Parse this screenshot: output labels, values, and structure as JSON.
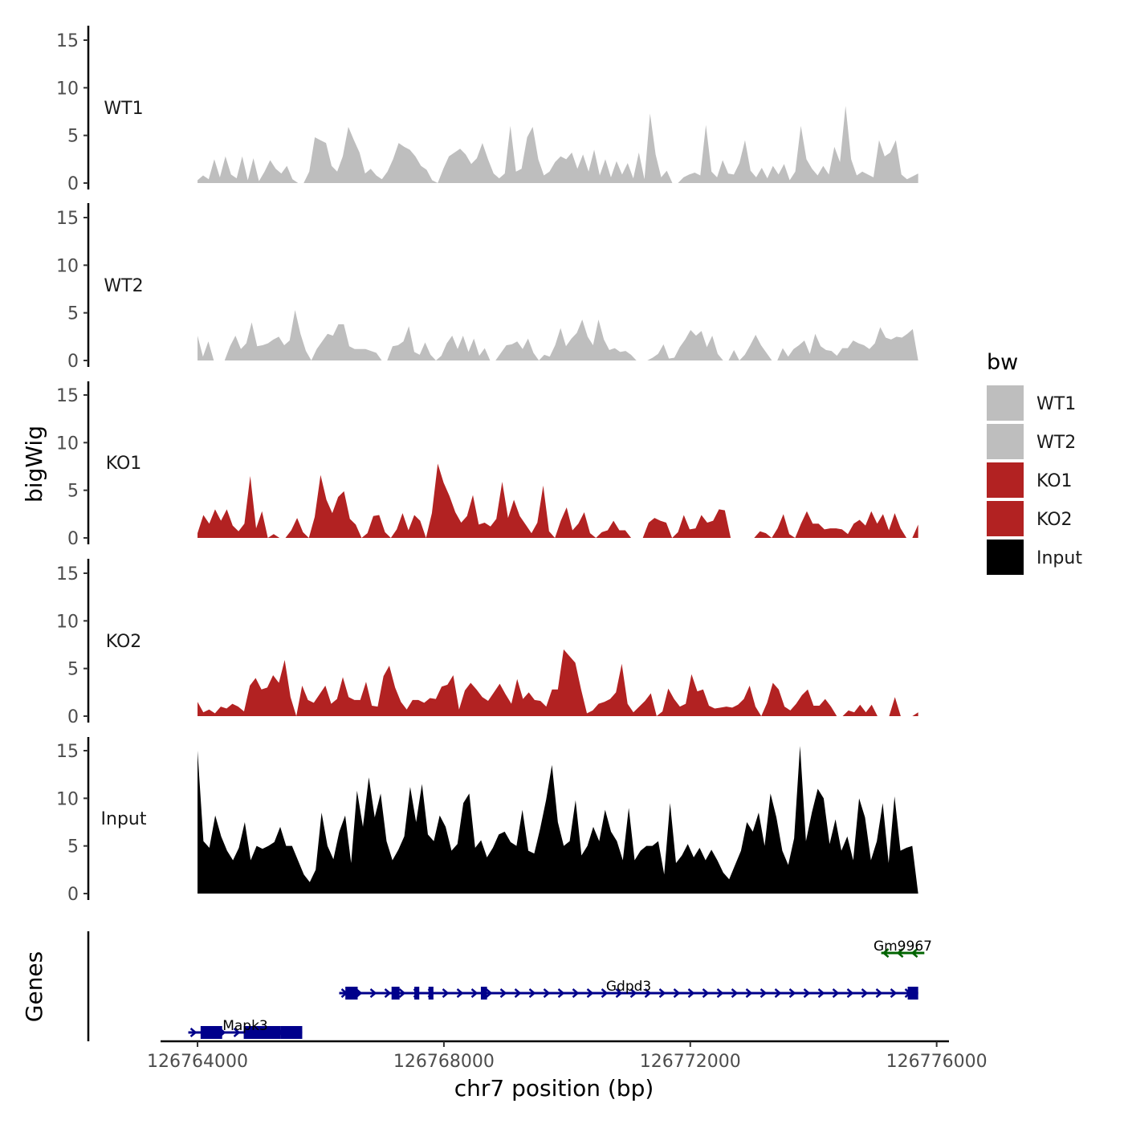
{
  "chart_data": {
    "type": "area",
    "title": "",
    "ylabel": "bigWig",
    "genes_ylabel": "Genes",
    "xlabel": "chr7 position (bp)",
    "xlim": [
      126763400,
      126776200
    ],
    "x_range_data": [
      126764000,
      126775700
    ],
    "xticks": [
      126764000,
      126768000,
      126772000,
      126776000
    ],
    "xtick_labels": [
      "126764000",
      "126768000",
      "126772000",
      "126776000"
    ],
    "ylim": [
      0,
      15.5
    ],
    "yticks": [
      0,
      5,
      10,
      15
    ],
    "ytick_labels": [
      "0",
      "5",
      "10",
      "15"
    ],
    "legend": {
      "title": "bw",
      "position": "right",
      "entries": [
        {
          "label": "WT1",
          "color": "#bebebe"
        },
        {
          "label": "WT2",
          "color": "#bebebe"
        },
        {
          "label": "KO1",
          "color": "#b22222"
        },
        {
          "label": "KO2",
          "color": "#b22222"
        },
        {
          "label": "Input",
          "color": "#000000"
        }
      ]
    },
    "series": [
      {
        "name": "WT1",
        "color": "#bebebe",
        "values": [
          0.3,
          0.8,
          0.4,
          2.5,
          0.6,
          2.8,
          0.9,
          0.5,
          2.8,
          0.3,
          2.6,
          0.2,
          1.2,
          2.4,
          1.5,
          1.0,
          1.8,
          0.4,
          0.0,
          0.0,
          1.2,
          4.8,
          4.5,
          4.2,
          1.8,
          1.2,
          2.8,
          5.9,
          4.5,
          3.2,
          1.0,
          1.5,
          0.8,
          0.4,
          1.2,
          2.5,
          4.2,
          3.8,
          3.5,
          2.8,
          1.8,
          1.4,
          0.3,
          0.0,
          1.5,
          2.8,
          3.2,
          3.6,
          3.0,
          2.0,
          2.6,
          4.2,
          2.5,
          1.0,
          0.5,
          1.0,
          6.0,
          1.2,
          1.5,
          4.8,
          5.9,
          2.5,
          0.8,
          1.2,
          2.2,
          2.8,
          2.5,
          3.2,
          1.5,
          3.0,
          1.2,
          3.5,
          0.8,
          2.5,
          0.6,
          2.3,
          0.9,
          2.1,
          0.5,
          3.2,
          0.4,
          7.3,
          3.0,
          0.6,
          1.3,
          0.0,
          0.0,
          0.6,
          0.9,
          1.1,
          0.8,
          6.1,
          1.2,
          0.6,
          2.4,
          1.0,
          0.9,
          2.1,
          4.5,
          1.3,
          0.6,
          1.6,
          0.5,
          1.8,
          0.9,
          2.0,
          0.3,
          1.2,
          6.0,
          2.5,
          1.5,
          0.8,
          1.8,
          0.9,
          3.8,
          2.2,
          8.1,
          2.5,
          0.8,
          1.2,
          0.9,
          0.6,
          4.5,
          2.8,
          3.2,
          4.5,
          0.9,
          0.4,
          0.7,
          1.0
        ]
      },
      {
        "name": "WT2",
        "color": "#bebebe",
        "values": [
          2.6,
          0.4,
          2.0,
          0.0,
          0.0,
          0.0,
          1.5,
          2.6,
          1.2,
          1.8,
          4.0,
          1.5,
          1.6,
          1.8,
          2.2,
          2.5,
          1.6,
          2.1,
          5.3,
          2.8,
          1.0,
          0.0,
          1.2,
          2.0,
          2.8,
          2.6,
          3.8,
          3.8,
          1.5,
          1.2,
          1.2,
          1.2,
          1.0,
          0.8,
          0.0,
          0.0,
          1.5,
          1.6,
          2.0,
          3.6,
          0.9,
          0.6,
          1.9,
          0.6,
          0.0,
          0.5,
          1.8,
          2.6,
          1.2,
          2.6,
          0.9,
          2.3,
          0.5,
          1.3,
          0.0,
          0.0,
          0.8,
          1.6,
          1.7,
          2.0,
          1.2,
          2.3,
          0.8,
          0.0,
          0.6,
          0.4,
          1.6,
          3.4,
          1.5,
          2.3,
          2.9,
          4.3,
          2.5,
          1.6,
          4.3,
          2.2,
          1.1,
          1.3,
          0.9,
          1.0,
          0.6,
          0.0,
          0.0,
          0.0,
          0.3,
          0.7,
          1.7,
          0.2,
          0.3,
          1.4,
          2.2,
          3.2,
          2.6,
          3.1,
          1.4,
          2.6,
          0.7,
          0.0,
          0.0,
          1.1,
          0.0,
          0.6,
          1.6,
          2.7,
          1.6,
          0.8,
          0.0,
          0.0,
          1.3,
          0.4,
          1.2,
          1.6,
          2.1,
          0.7,
          2.8,
          1.5,
          1.1,
          1.0,
          0.5,
          1.3,
          1.3,
          2.1,
          1.8,
          1.6,
          1.2,
          1.8,
          3.5,
          2.4,
          2.2,
          2.5,
          2.4,
          2.8,
          3.3,
          0.0
        ]
      },
      {
        "name": "KO1",
        "color": "#b22222",
        "values": [
          0.5,
          2.4,
          1.5,
          3.0,
          1.8,
          3.0,
          1.3,
          0.7,
          1.5,
          6.5,
          1.0,
          2.8,
          0.0,
          0.4,
          0.0,
          0.0,
          0.8,
          2.1,
          0.6,
          0.0,
          2.2,
          6.6,
          4.0,
          2.6,
          4.3,
          4.9,
          2.0,
          1.4,
          0.0,
          0.5,
          2.3,
          2.4,
          0.6,
          0.0,
          0.9,
          2.6,
          0.8,
          2.4,
          1.8,
          0.0,
          2.6,
          7.8,
          5.8,
          4.4,
          2.7,
          1.6,
          2.3,
          4.5,
          1.4,
          1.6,
          1.2,
          2.0,
          5.9,
          2.1,
          4.0,
          2.3,
          1.4,
          0.5,
          1.6,
          5.5,
          0.7,
          0.0,
          1.8,
          3.2,
          0.8,
          1.5,
          2.7,
          0.5,
          0.0,
          0.6,
          0.8,
          1.8,
          0.8,
          0.8,
          0.0,
          0.0,
          0.0,
          1.6,
          2.1,
          1.8,
          1.6,
          0.0,
          0.6,
          2.4,
          0.9,
          1.0,
          2.4,
          1.6,
          1.8,
          3.0,
          2.9,
          0.0,
          0.0,
          0.0,
          0.0,
          0.0,
          0.7,
          0.5,
          0.0,
          1.0,
          2.5,
          0.4,
          0.0,
          1.5,
          2.8,
          1.5,
          1.5,
          0.9,
          1.0,
          1.0,
          0.9,
          0.4,
          1.5,
          1.9,
          1.3,
          2.8,
          1.5,
          2.5,
          0.8,
          2.6,
          1.0,
          0.0,
          0.0,
          1.4
        ]
      },
      {
        "name": "KO2",
        "color": "#b22222",
        "values": [
          1.5,
          0.4,
          0.7,
          0.3,
          1.0,
          0.8,
          1.3,
          1.0,
          0.5,
          3.2,
          4.0,
          2.8,
          3.0,
          4.3,
          3.5,
          5.9,
          2.0,
          0.0,
          3.2,
          1.7,
          1.4,
          2.3,
          3.2,
          1.3,
          1.8,
          4.1,
          2.0,
          1.7,
          1.7,
          3.6,
          1.1,
          1.0,
          4.2,
          5.3,
          3.0,
          1.5,
          0.7,
          1.7,
          1.7,
          1.4,
          1.9,
          1.8,
          3.1,
          3.3,
          4.3,
          0.7,
          2.7,
          3.5,
          2.8,
          2.0,
          1.6,
          2.5,
          3.4,
          2.3,
          1.3,
          3.9,
          1.8,
          2.5,
          1.7,
          1.6,
          1.0,
          2.8,
          2.8,
          7.0,
          6.3,
          5.6,
          2.8,
          0.3,
          0.6,
          1.3,
          1.5,
          1.8,
          2.5,
          5.5,
          1.3,
          0.4,
          1.0,
          1.6,
          2.4,
          0.0,
          0.5,
          2.9,
          1.8,
          1.0,
          1.3,
          4.4,
          2.6,
          2.8,
          1.1,
          0.8,
          0.9,
          1.0,
          0.9,
          1.2,
          1.8,
          3.2,
          1.0,
          0.0,
          1.4,
          3.5,
          2.8,
          1.0,
          0.6,
          1.3,
          2.2,
          2.8,
          1.1,
          1.1,
          1.8,
          1.0,
          0.0,
          0.0,
          0.6,
          0.4,
          1.2,
          0.4,
          1.2,
          0.0,
          0.0,
          0.0,
          2.0,
          0.0,
          0.0,
          0.0,
          0.4
        ]
      },
      {
        "name": "Input",
        "color": "#000000",
        "values": [
          15.0,
          5.5,
          4.8,
          8.2,
          6.0,
          4.5,
          3.5,
          4.8,
          7.5,
          3.5,
          5.0,
          4.7,
          5.0,
          5.4,
          7.0,
          5.0,
          5.0,
          3.5,
          2.0,
          1.2,
          2.5,
          8.5,
          5.0,
          3.6,
          6.5,
          8.2,
          3.2,
          10.8,
          7.0,
          12.2,
          8.0,
          10.5,
          5.5,
          3.5,
          4.6,
          6.0,
          11.2,
          7.5,
          11.5,
          6.2,
          5.5,
          8.2,
          7.0,
          4.5,
          5.2,
          9.5,
          10.5,
          4.8,
          5.6,
          3.8,
          4.8,
          6.2,
          6.5,
          5.4,
          5.0,
          8.8,
          4.5,
          4.2,
          6.8,
          9.8,
          13.5,
          7.5,
          5.0,
          5.5,
          9.8,
          4.0,
          5.0,
          7.0,
          5.5,
          8.8,
          6.5,
          5.5,
          3.5,
          9.0,
          3.5,
          4.5,
          5.0,
          5.0,
          5.5,
          2.0,
          9.5,
          3.2,
          4.0,
          5.2,
          3.8,
          4.8,
          3.5,
          4.6,
          3.5,
          2.2,
          1.5,
          3.0,
          4.5,
          7.5,
          6.5,
          8.5,
          5.0,
          10.5,
          8.0,
          4.5,
          3.0,
          5.8,
          15.5,
          5.5,
          8.5,
          11.0,
          10.0,
          5.2,
          7.8,
          4.5,
          6.0,
          3.5,
          10.0,
          8.0,
          3.5,
          5.5,
          9.5,
          3.2,
          10.2,
          4.5,
          4.8,
          5.0,
          0.0
        ]
      }
    ],
    "genes": [
      {
        "name": "Gm9967",
        "strand": "-",
        "color": "#006400",
        "start": 126775100,
        "end": 126775800,
        "exons": []
      },
      {
        "name": "Gdpd3",
        "strand": "+",
        "color": "#00008b",
        "start": 126766300,
        "end": 126775700,
        "exons": [
          [
            126766400,
            126766600
          ],
          [
            126767150,
            126767280
          ],
          [
            126767520,
            126767600
          ],
          [
            126767750,
            126767830
          ],
          [
            126768600,
            126768700
          ],
          [
            126775530,
            126775700
          ]
        ]
      },
      {
        "name": "Mapk3",
        "strand": "+",
        "color": "#00008b",
        "start": 126763850,
        "end": 126765700,
        "exons": [
          [
            126764050,
            126764400
          ],
          [
            126764750,
            126765350
          ],
          [
            126765350,
            126765700
          ]
        ]
      }
    ]
  }
}
